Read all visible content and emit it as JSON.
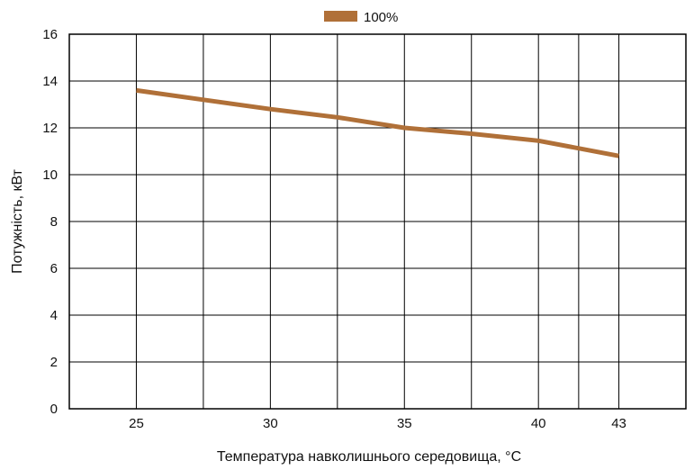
{
  "chart_data": {
    "type": "line",
    "title": "",
    "xlabel": "Температура навколишнього середовища, °C",
    "ylabel": "Потужність, кВт",
    "x_ticks": [
      25,
      30,
      35,
      40,
      43
    ],
    "x_tick_labels": [
      "25",
      "30",
      "35",
      "40",
      "43"
    ],
    "xlim": [
      22.5,
      45.5
    ],
    "ylim": [
      0,
      16
    ],
    "y_ticks": [
      0,
      2,
      4,
      6,
      8,
      10,
      12,
      14,
      16
    ],
    "y_tick_labels": [
      "0",
      "2",
      "4",
      "6",
      "8",
      "10",
      "12",
      "14",
      "16"
    ],
    "grid": true,
    "legend": "top-center",
    "series": [
      {
        "name": "100%",
        "color": "#B07038",
        "x": [
          25,
          27.5,
          30,
          32.5,
          35,
          37.5,
          40,
          43
        ],
        "y": [
          13.6,
          13.2,
          12.8,
          12.45,
          12.0,
          11.75,
          11.45,
          10.8
        ]
      }
    ]
  }
}
